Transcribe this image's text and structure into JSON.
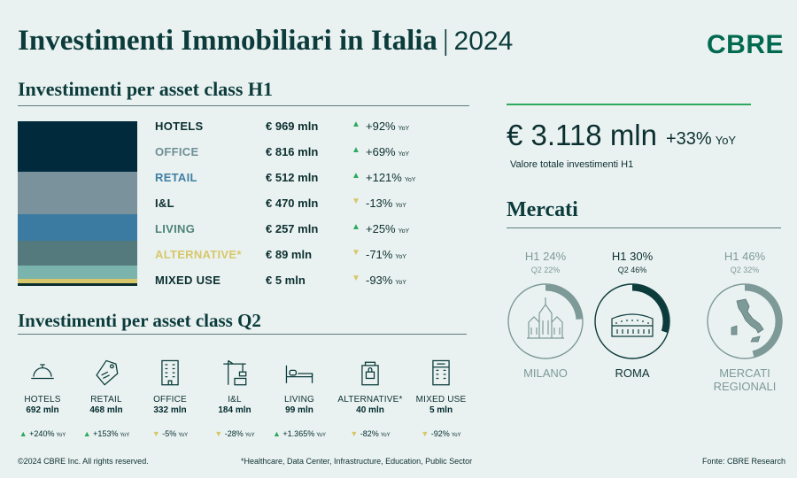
{
  "header": {
    "title": "Investimenti Immobiliari in Italia",
    "separator": "|",
    "year": "2024",
    "logo": "CBRE"
  },
  "h1": {
    "title": "Investimenti per asset class H1",
    "rows": [
      {
        "name": "HOTELS",
        "value": "€ 969 mln",
        "trend": "up",
        "pct": "+92%",
        "yoy": "YoY",
        "name_color": "#0b2f30"
      },
      {
        "name": "OFFICE",
        "value": "€ 816 mln",
        "trend": "up",
        "pct": "+69%",
        "yoy": "YoY",
        "name_color": "#6f8f97"
      },
      {
        "name": "RETAIL",
        "value": "€ 512 mln",
        "trend": "up",
        "pct": "+121%",
        "yoy": "YoY",
        "name_color": "#3f7fa3"
      },
      {
        "name": "I&L",
        "value": "€ 470 mln",
        "trend": "down",
        "pct": "-13%",
        "yoy": "YoY",
        "name_color": "#0b2f30"
      },
      {
        "name": "LIVING",
        "value": "€ 257 mln",
        "trend": "up",
        "pct": "+25%",
        "yoy": "YoY",
        "name_color": "#4d8478"
      },
      {
        "name": "ALTERNATIVE*",
        "value": "€ 89 mln",
        "trend": "down",
        "pct": "-71%",
        "yoy": "YoY",
        "name_color": "#d7c76a"
      },
      {
        "name": "MIXED USE",
        "value": "€ 5 mln",
        "trend": "down",
        "pct": "-93%",
        "yoy": "YoY",
        "name_color": "#0b2f30"
      }
    ],
    "stack_segments": [
      {
        "asset": "HOTELS",
        "value": 969,
        "color": "#012a3d"
      },
      {
        "asset": "OFFICE",
        "value": 816,
        "color": "#7a929b"
      },
      {
        "asset": "RETAIL",
        "value": 512,
        "color": "#3b7ba2"
      },
      {
        "asset": "I&L",
        "value": 470,
        "color": "#547a7e"
      },
      {
        "asset": "LIVING",
        "value": 257,
        "color": "#7ab4ac"
      },
      {
        "asset": "ALTERNATIVE*",
        "value": 89,
        "color": "#d7c76a"
      },
      {
        "asset": "MIXED USE",
        "value": 5,
        "color": "#0b2f30"
      }
    ]
  },
  "q2": {
    "title": "Investimenti per asset class Q2",
    "items": [
      {
        "icon": "hotel-bell-icon",
        "label": "HOTELS",
        "value": "692 mln",
        "trend": "up",
        "change": "+240%",
        "yoy": "YoY"
      },
      {
        "icon": "price-tag-icon",
        "label": "RETAIL",
        "value": "468 mln",
        "trend": "up",
        "change": "+153%",
        "yoy": "YoY"
      },
      {
        "icon": "office-building-icon",
        "label": "OFFICE",
        "value": "332 mln",
        "trend": "down",
        "change": "-5%",
        "yoy": "YoY"
      },
      {
        "icon": "crane-icon",
        "label": "I&L",
        "value": "184 mln",
        "trend": "down",
        "change": "-28%",
        "yoy": "YoY"
      },
      {
        "icon": "bed-icon",
        "label": "LIVING",
        "value": "99 mln",
        "trend": "up",
        "change": "+1.365%",
        "yoy": "YoY"
      },
      {
        "icon": "data-center-icon",
        "label": "ALTERNATIVE*",
        "value": "40 mln",
        "trend": "down",
        "change": "-82%",
        "yoy": "YoY"
      },
      {
        "icon": "mixed-building-icon",
        "label": "MIXED USE",
        "value": "5 mln",
        "trend": "down",
        "change": "-92%",
        "yoy": "YoY"
      }
    ]
  },
  "total": {
    "value": "€ 3.118 mln",
    "change": "+33%",
    "yoy": "YoY",
    "label": "Valore totale investimenti H1"
  },
  "mercati": {
    "title": "Mercati",
    "markets": [
      {
        "name": "MILANO",
        "h1": "H1 24%",
        "q2": "Q2 22%",
        "h1_share": 0.24,
        "q2_share": 0.22,
        "icon": "duomo-icon"
      },
      {
        "name": "ROMA",
        "h1": "H1 30%",
        "q2": "Q2 46%",
        "h1_share": 0.3,
        "q2_share": 0.46,
        "icon": "colosseum-icon"
      },
      {
        "name": "MERCATI REGIONALI",
        "h1": "H1 46%",
        "q2": "Q2 32%",
        "h1_share": 0.46,
        "q2_share": 0.32,
        "icon": "italy-map-icon"
      }
    ]
  },
  "footer": {
    "copyright": "©2024 CBRE Inc. All rights reserved.",
    "note": "*Healthcare, Data Center, Infrastructure, Education, Public Sector",
    "source": "Fonte: CBRE Research"
  },
  "colors": {
    "background": "#eaf2f1",
    "brand": "#00694f",
    "up": "#2eaa5e",
    "down": "#d7c76a"
  }
}
